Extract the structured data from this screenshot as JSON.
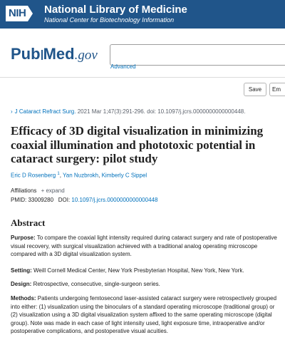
{
  "banner": {
    "logo_text": "NIH",
    "title": "National Library of Medicine",
    "subtitle": "National Center for Biotechnology Information",
    "bg_color": "#20558a"
  },
  "pubmed": {
    "logo_pub": "Pub",
    "logo_med": "Med",
    "logo_gov": ".gov",
    "search_value": "",
    "advanced_label": "Advanced"
  },
  "toolbar": {
    "save_label": "Save",
    "email_label": "Em"
  },
  "citation": {
    "chevron": "›",
    "journal": "J Cataract Refract Surg.",
    "details": "2021 Mar 1;47(3):291-296. doi: 10.1097/j.jcrs.0000000000000448."
  },
  "article": {
    "title": "Efficacy of 3D digital visualization in minimizing coaxial illumination and phototoxic potential in cataract surgery: pilot study",
    "authors": [
      {
        "name": "Eric D Rosenberg",
        "sup": "1"
      },
      {
        "name": "Yan Nuzbrokh"
      },
      {
        "name": "Kimberly C Sippel"
      }
    ],
    "affiliations_label": "Affiliations",
    "expand_label": "+ expand",
    "pmid_label": "PMID:",
    "pmid": "33009280",
    "doi_label": "DOI:",
    "doi": "10.1097/j.jcrs.0000000000000448"
  },
  "abstract": {
    "heading": "Abstract",
    "purpose_label": "Purpose:",
    "purpose_text": "To compare the coaxial light intensity required during cataract surgery and rate of postoperative visual recovery, with surgical visualization achieved with a traditional analog operating microscope compared with a 3D digital visualization system.",
    "setting_label": "Setting:",
    "setting_text": "Weill Cornell Medical Center, New York Presbyterian Hospital, New York, New York.",
    "design_label": "Design:",
    "design_text": "Retrospective, consecutive, single-surgeon series.",
    "methods_label": "Methods:",
    "methods_text": "Patients undergoing femtosecond laser-assisted cataract surgery were retrospectively grouped into either: (1) visualization using the binoculars of a standard operating microscope (traditional group) or (2) visualization using a 3D digital visualization system affixed to the same operating microscope (digital group). Note was made in each case of light intensity used, light exposure time, intraoperative and/or postoperative complications, and postoperative visual acuities."
  },
  "colors": {
    "link": "#0071bc",
    "brand": "#20558a",
    "muted": "#5b616b"
  }
}
